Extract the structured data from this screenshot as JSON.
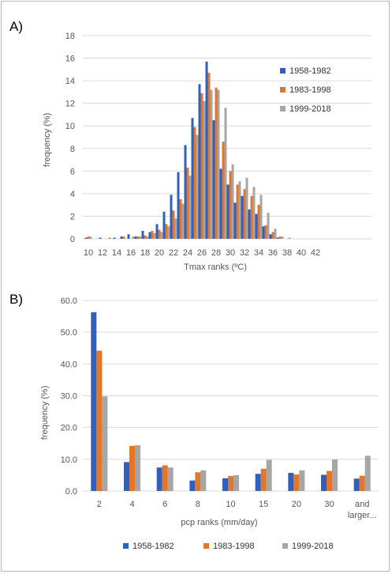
{
  "colors": {
    "s1": "#3060bf",
    "s2": "#e2762a",
    "s3": "#a6a6a6"
  },
  "chart_data": [
    {
      "label": "A)",
      "type": "bar",
      "xlabel": "Tmax ranks (ºC)",
      "ylabel": "frequency (%)",
      "ylim": [
        0,
        18
      ],
      "yticks": [
        0,
        2,
        4,
        6,
        8,
        10,
        12,
        14,
        16,
        18
      ],
      "xtick_labels": [
        "10",
        "12",
        "14",
        "16",
        "18",
        "20",
        "22",
        "24",
        "26",
        "28",
        "30",
        "32",
        "34",
        "36",
        "38",
        "40",
        "42"
      ],
      "x": [
        10,
        11,
        12,
        13,
        14,
        15,
        16,
        17,
        18,
        19,
        20,
        21,
        22,
        23,
        24,
        25,
        26,
        27,
        28,
        29,
        30,
        31,
        32,
        33,
        34,
        35,
        36,
        37,
        38,
        39,
        40
      ],
      "grid": true,
      "legend": "right",
      "series": [
        {
          "name": "1958-1982",
          "values": [
            0.1,
            0,
            0.1,
            0,
            0.1,
            0.2,
            0.4,
            0.2,
            0.7,
            0.6,
            1.3,
            2.4,
            3.9,
            5.9,
            8.3,
            10.7,
            13.7,
            15.7,
            10.5,
            6.2,
            4.8,
            3.2,
            3.8,
            2.6,
            2.2,
            1.1,
            0.4,
            0.1,
            0,
            0,
            0
          ]
        },
        {
          "name": "1983-1998",
          "values": [
            0.2,
            0,
            0,
            0.1,
            0,
            0.2,
            0,
            0.2,
            0.3,
            0.7,
            0.8,
            1.3,
            2.5,
            3.5,
            6.3,
            9.9,
            12.9,
            14.7,
            13.4,
            8.6,
            6.0,
            4.8,
            4.4,
            3.8,
            3.0,
            1.2,
            0.6,
            0.2,
            0,
            0,
            0
          ]
        },
        {
          "name": "1999-2018",
          "values": [
            0.2,
            0,
            0,
            0,
            0,
            0,
            0.2,
            0.2,
            0.2,
            0.5,
            0.6,
            1.1,
            1.8,
            3.1,
            5.6,
            9.2,
            12.2,
            13.2,
            13.2,
            11.6,
            6.6,
            5.1,
            5.4,
            4.6,
            3.9,
            2.3,
            0.9,
            0.2,
            0.1,
            0,
            0
          ]
        }
      ]
    },
    {
      "label": "B)",
      "type": "bar",
      "xlabel": "pcp ranks (mm/day)",
      "ylabel": "frequency (%)",
      "ylim": [
        0,
        60
      ],
      "yticks": [
        0.0,
        10.0,
        20.0,
        30.0,
        40.0,
        50.0,
        60.0
      ],
      "categories": [
        "2",
        "4",
        "6",
        "8",
        "10",
        "15",
        "20",
        "30",
        "and larger..."
      ],
      "grid": true,
      "legend": "bottom",
      "series": [
        {
          "name": "1958-1982",
          "values": [
            56.3,
            9.1,
            7.4,
            3.3,
            4.0,
            5.4,
            5.7,
            5.1,
            3.9
          ]
        },
        {
          "name": "1983-1998",
          "values": [
            44.2,
            14.2,
            8.1,
            5.9,
            4.7,
            7.0,
            5.2,
            6.3,
            4.8
          ]
        },
        {
          "name": "1999-2018",
          "values": [
            29.8,
            14.4,
            7.4,
            6.5,
            5.0,
            9.8,
            6.5,
            9.9,
            11.1
          ]
        }
      ]
    }
  ]
}
